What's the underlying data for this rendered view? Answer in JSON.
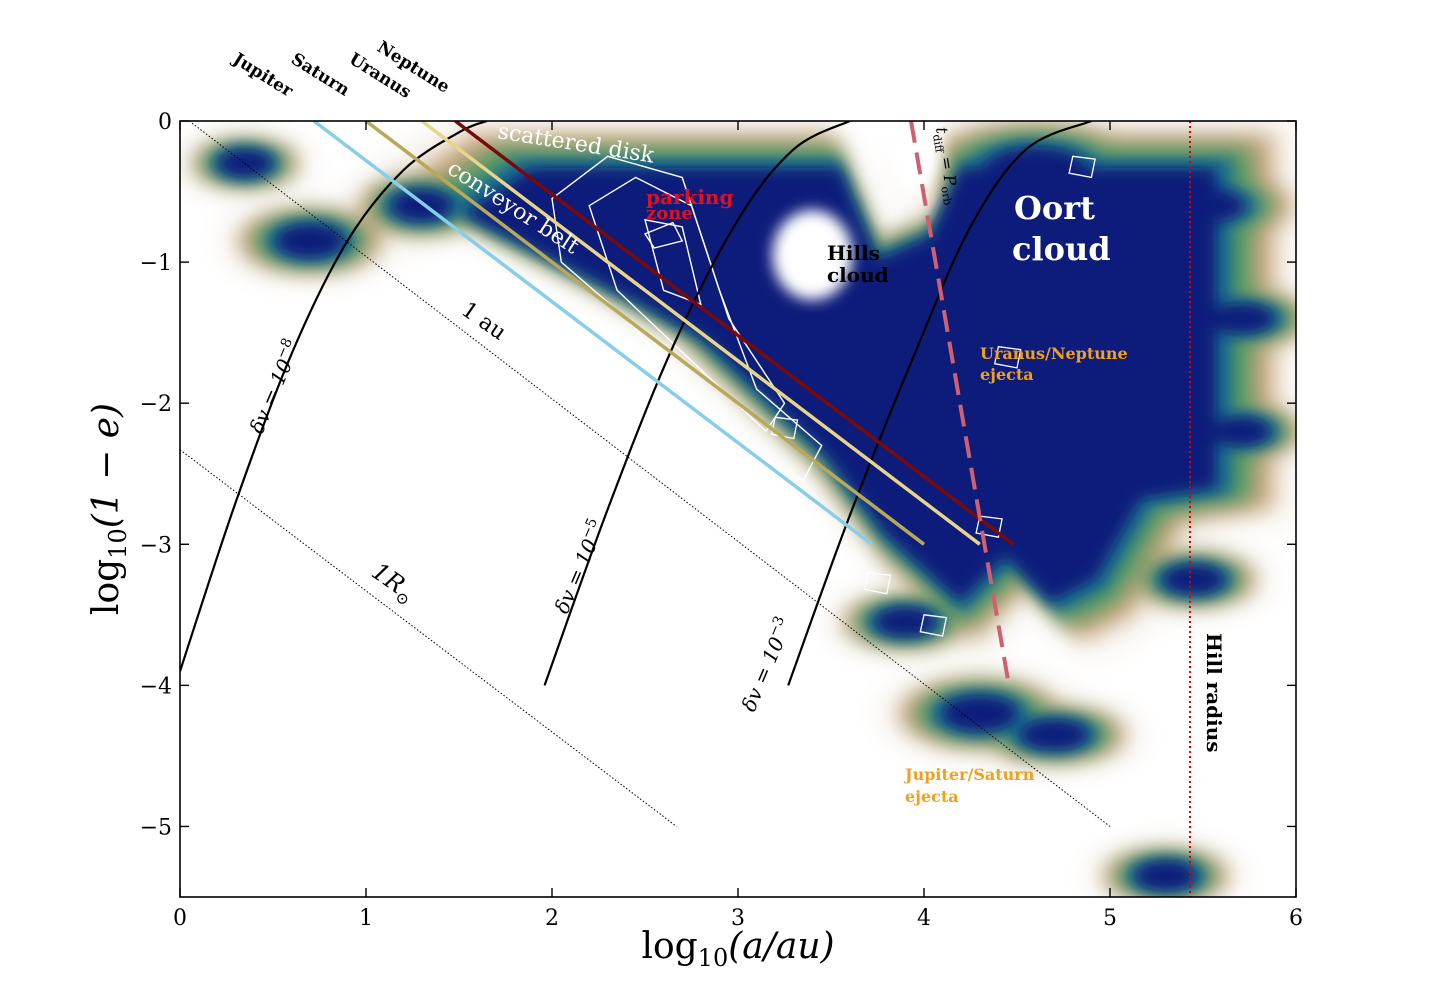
{
  "chart_data": {
    "type": "heatmap",
    "xlabel_base": "log",
    "xlabel_sub": "10",
    "xlabel_rest": "(a/au)",
    "ylabel_base": "log",
    "ylabel_sub": "10",
    "ylabel_rest": "(1 − e)",
    "xlim": [
      0,
      6
    ],
    "ylim": [
      -5.5,
      0
    ],
    "xticks": [
      0,
      1,
      2,
      3,
      4,
      5,
      6
    ],
    "xtick_labels": [
      "0",
      "1",
      "2",
      "3",
      "4",
      "5",
      "6"
    ],
    "yticks": [
      0,
      -1,
      -2,
      -3,
      -4,
      -5
    ],
    "ytick_labels": [
      "0",
      "−1",
      "−2",
      "−3",
      "−4",
      "−5"
    ],
    "grid": false,
    "colors": {
      "density_low": "#f5f0ea",
      "density_tan": "#c9a47a",
      "density_green": "#4f9a63",
      "density_teal": "#1f6f8f",
      "density_high": "#0a1f7a",
      "jupiter_line": "#87ceeb",
      "saturn_line": "#b8a95a",
      "uranus_line": "#e8d48a",
      "neptune_line": "#7a0a0a",
      "tdiff_line": "#d06070",
      "hill_line": "#e00000",
      "orange_text": "#f0a020",
      "red_text": "#e01020"
    },
    "planet_labels": [
      "Jupiter",
      "Saturn",
      "Uranus",
      "Neptune"
    ],
    "planet_lines": [
      {
        "name": "Jupiter",
        "x": [
          0.72,
          3.72
        ],
        "y": [
          0,
          -3.0
        ]
      },
      {
        "name": "Saturn",
        "x": [
          1.0,
          4.0
        ],
        "y": [
          0,
          -3.0
        ]
      },
      {
        "name": "Uranus",
        "x": [
          1.3,
          4.3
        ],
        "y": [
          0,
          -3.0
        ]
      },
      {
        "name": "Neptune",
        "x": [
          1.48,
          4.48
        ],
        "y": [
          0,
          -3.0
        ]
      }
    ],
    "dv_curves": [
      {
        "label_pre": "δv = 10",
        "exp": "−8",
        "x": [
          0.0,
          0.3,
          0.6,
          0.9,
          1.2,
          1.5,
          1.65
        ],
        "y": [
          -3.9,
          -2.7,
          -1.65,
          -0.85,
          -0.35,
          -0.08,
          0.0
        ]
      },
      {
        "label_pre": "δv = 10",
        "exp": "−5",
        "x": [
          1.96,
          2.3,
          2.65,
          3.0,
          3.3,
          3.6
        ],
        "y": [
          -4.0,
          -2.75,
          -1.6,
          -0.7,
          -0.2,
          0.0
        ]
      },
      {
        "label_pre": "δv = 10",
        "exp": "−3",
        "x": [
          3.27,
          3.6,
          3.95,
          4.25,
          4.55,
          4.9
        ],
        "y": [
          -4.0,
          -2.8,
          -1.65,
          -0.75,
          -0.2,
          0.0
        ]
      }
    ],
    "reference_lines": [
      {
        "label": "1 au",
        "x": [
          0.05,
          5.0
        ],
        "y": [
          0.0,
          -5.0
        ]
      },
      {
        "label_base": "1R",
        "label_sub": "⊙",
        "x": [
          0.0,
          2.67
        ],
        "y": [
          -2.33,
          -5.0
        ]
      }
    ],
    "tdiff_line": {
      "label_pre": "t",
      "label_sub": "diff",
      "label_mid": " = P",
      "label_sub2": "orb",
      "x": [
        3.93,
        4.45
      ],
      "y": [
        0.0,
        -3.95
      ]
    },
    "hill_radius": {
      "x": 5.43,
      "label": "Hill radius"
    },
    "annotations": {
      "scattered_disk": "scattered disk",
      "conveyor_belt": "conveyor belt",
      "parking_1": "parking",
      "parking_2": "zone",
      "hills_1": "Hills",
      "hills_2": "cloud",
      "oort_1": "Oort",
      "oort_2": "cloud",
      "un_1": "Uranus/Neptune",
      "un_2": "ejecta",
      "js_1": "Jupiter/Saturn",
      "js_2": "ejecta"
    }
  }
}
